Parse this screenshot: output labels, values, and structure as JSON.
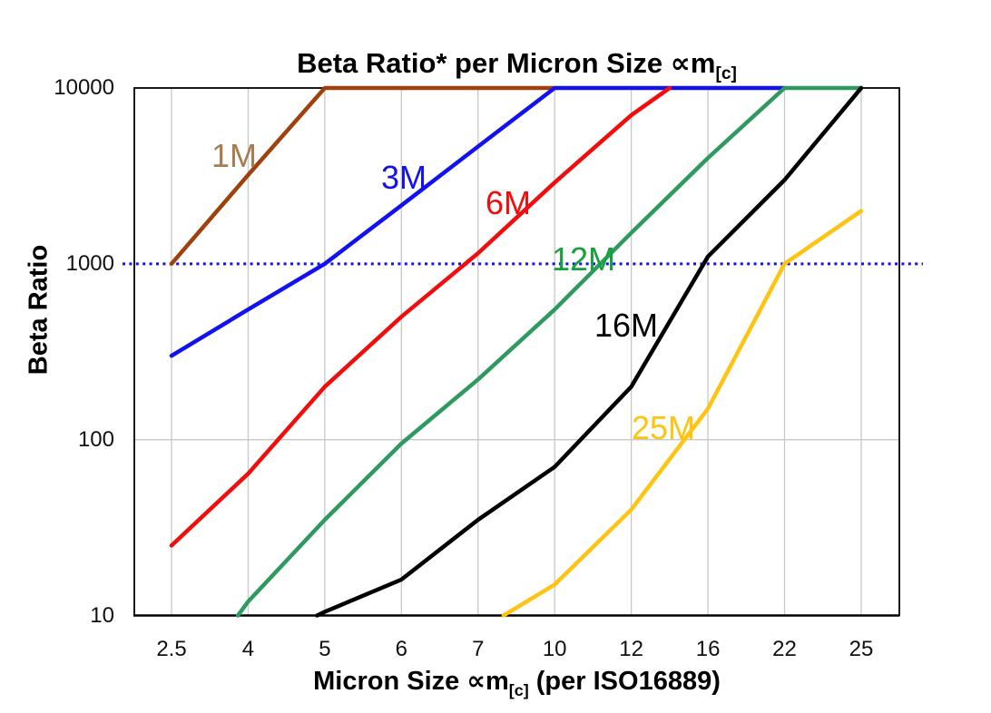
{
  "title": {
    "prefix": "Beta Ratio* per Micron Size ",
    "symbol": "∝m",
    "subscript": "[c]"
  },
  "y_axis": {
    "title": "Beta Ratio",
    "tick_labels": [
      "10000",
      "1000",
      "100",
      "10"
    ],
    "tick_values": [
      10000,
      1000,
      100,
      10
    ]
  },
  "x_axis": {
    "prefix": "Micron Size ",
    "symbol": "∝m",
    "subscript": "[c]",
    "suffix": " (per ISO16889)",
    "tick_labels": [
      "2.5",
      "4",
      "5",
      "6",
      "7",
      "10",
      "12",
      "16",
      "22",
      "25"
    ]
  },
  "colors": {
    "background": "#ffffff",
    "axis_border": "#000000",
    "gridline": "#c8c8c8",
    "reference_dotted": "#1212f0"
  },
  "chart_data": {
    "type": "line",
    "title": "Beta Ratio* per Micron Size ∝m[c]",
    "xlabel": "Micron Size ∝m[c] (per ISO16889)",
    "ylabel": "Beta Ratio",
    "y_scale": "log",
    "ylim": [
      10,
      10000
    ],
    "y_ticks": [
      10,
      100,
      1000,
      10000
    ],
    "x_categories": [
      2.5,
      4,
      5,
      6,
      7,
      10,
      12,
      16,
      22,
      25
    ],
    "grid": {
      "vertical": "per-category",
      "horizontal_at": [
        100
      ],
      "color": "#c8c8c8"
    },
    "legend": "inline-labels",
    "reference_line": {
      "value": 1000,
      "style": "dotted",
      "color": "#1212f0"
    },
    "series": [
      {
        "name": "1M",
        "color": "#a0410d",
        "label_color": "#a87c4f",
        "label_pos": [
          258,
          172
        ],
        "points": [
          [
            2.5,
            1000
          ],
          [
            4,
            3200
          ],
          [
            5,
            10000
          ],
          [
            10,
            10000
          ]
        ]
      },
      {
        "name": "3M",
        "color": "#1212f0",
        "label_color": "#1212f0",
        "label_pos": [
          445,
          196
        ],
        "points": [
          [
            2.5,
            300
          ],
          [
            4,
            550
          ],
          [
            5,
            1000
          ],
          [
            6,
            2150
          ],
          [
            7,
            4650
          ],
          [
            10,
            10000
          ],
          [
            22,
            10000
          ]
        ]
      },
      {
        "name": "6M",
        "color": "#f20d0d",
        "label_color": "#f20d0d",
        "label_pos": [
          560,
          224
        ],
        "points": [
          [
            2.5,
            25
          ],
          [
            4,
            64
          ],
          [
            5,
            200
          ],
          [
            6,
            500
          ],
          [
            7,
            1150
          ],
          [
            10,
            2900
          ],
          [
            12,
            7000
          ],
          [
            14,
            10000
          ]
        ]
      },
      {
        "name": "12M",
        "color": "#2e9a60",
        "label_color": "#17a13d",
        "label_pos": [
          643,
          286
        ],
        "points": [
          [
            3.8,
            10
          ],
          [
            4,
            12
          ],
          [
            5,
            35
          ],
          [
            6,
            95
          ],
          [
            7,
            220
          ],
          [
            10,
            550
          ],
          [
            12,
            1500
          ],
          [
            16,
            4000
          ],
          [
            22,
            10000
          ],
          [
            25,
            10000
          ]
        ]
      },
      {
        "name": "16M",
        "color": "#000000",
        "label_color": "#000000",
        "label_pos": [
          690,
          359
        ],
        "points": [
          [
            4.9,
            10
          ],
          [
            5,
            10.5
          ],
          [
            6,
            16
          ],
          [
            7,
            35
          ],
          [
            10,
            70
          ],
          [
            12,
            200
          ],
          [
            16,
            1100
          ],
          [
            22,
            3000
          ],
          [
            25,
            10000
          ]
        ]
      },
      {
        "name": "25M",
        "color": "#ffc312",
        "label_color": "#ffc312",
        "label_pos": [
          731,
          472
        ],
        "points": [
          [
            8,
            10
          ],
          [
            10,
            15
          ],
          [
            12,
            40
          ],
          [
            16,
            150
          ],
          [
            22,
            1000
          ],
          [
            25,
            2000
          ]
        ]
      }
    ]
  }
}
